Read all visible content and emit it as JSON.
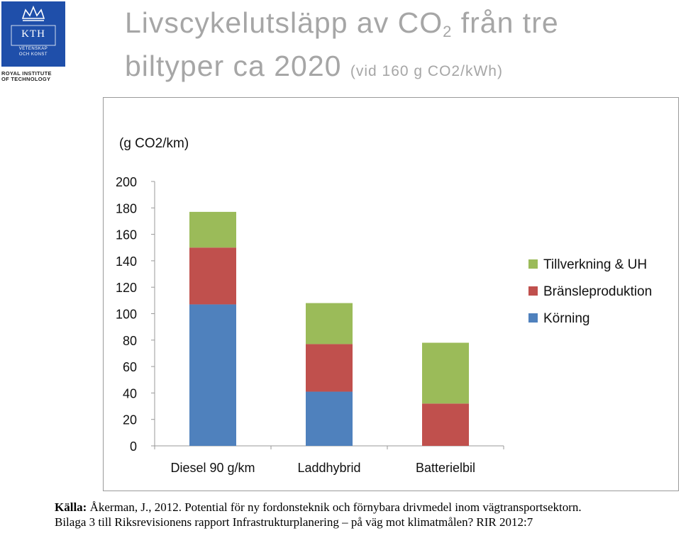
{
  "logo": {
    "name": "KTH",
    "line1": "VETENSKAP",
    "line2": "OCH KONST",
    "caption1": "ROYAL INSTITUTE",
    "caption2": "OF TECHNOLOGY"
  },
  "title": {
    "part1": "Livscykelutsläpp av CO",
    "subscript": "2",
    "part2": " från tre",
    "line2": "biltyper ca 2020",
    "note": "(vid 160 g CO2/kWh)"
  },
  "source": {
    "label": "Källa:",
    "line1": " Åkerman, J., 2012. Potential för ny fordonsteknik och förnybara drivmedel inom vägtransportsektorn.",
    "line2": "Bilaga 3 till Riksrevisionens rapport Infrastrukturplanering – på väg mot klimatmålen? RIR 2012:7"
  },
  "chart_data": {
    "type": "bar",
    "stacked": true,
    "unit_label": "(g CO2/km)",
    "categories": [
      "Diesel 90 g/km",
      "Laddhybrid",
      "Batterielbil"
    ],
    "series": [
      {
        "name": "Körning",
        "color": "#4f81bd",
        "values": [
          107,
          41,
          0
        ]
      },
      {
        "name": "Bränsleproduktion",
        "color": "#c0504d",
        "values": [
          43,
          36,
          32
        ]
      },
      {
        "name": "Tillverkning & UH",
        "color": "#9bbb59",
        "values": [
          27,
          31,
          46
        ]
      }
    ],
    "ylim": [
      0,
      200
    ],
    "yticks": [
      0,
      20,
      40,
      60,
      80,
      100,
      120,
      140,
      160,
      180,
      200
    ],
    "grid": false,
    "legend_position": "right",
    "legend_order": [
      "Tillverkning & UH",
      "Bränsleproduktion",
      "Körning"
    ]
  }
}
